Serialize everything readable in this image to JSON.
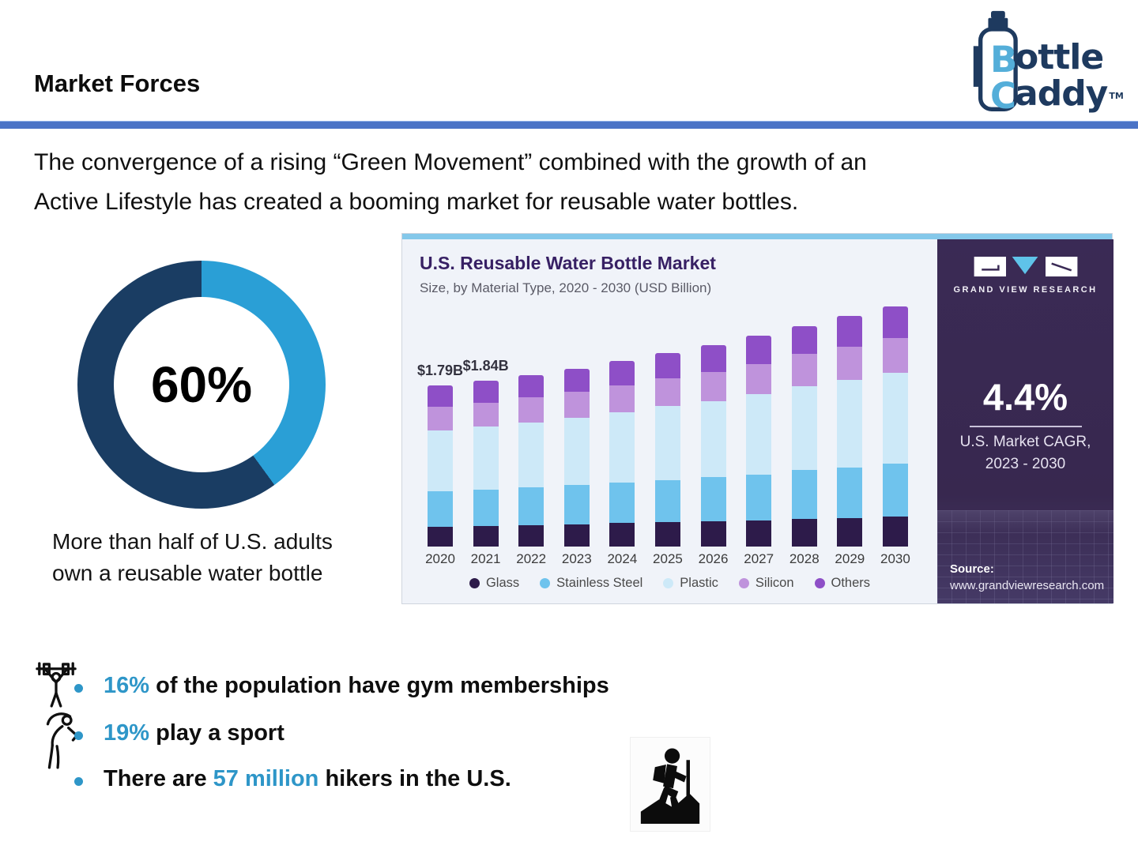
{
  "header": {
    "title": "Market Forces"
  },
  "logo": {
    "letter_b": "B",
    "letter_c": "C",
    "word1_rest": "ottle",
    "word2_rest": "addy",
    "tm": "TM"
  },
  "intro": {
    "line1": "The convergence of a rising “Green Movement” combined with the growth of an",
    "line2": "Active Lifestyle has created a booming market for reusable water bottles."
  },
  "donut": {
    "value_label": "60%",
    "percent": 60,
    "caption_line1": "More than half of U.S. adults",
    "caption_line2": "own a reusable water bottle"
  },
  "figure": {
    "brand": "GRAND VIEW RESEARCH",
    "cagr_value": "4.4%",
    "cagr_label_line1": "U.S. Market CAGR,",
    "cagr_label_line2": "2023 - 2030",
    "source_label": "Source:",
    "source_url": "www.grandviewresearch.com"
  },
  "chart_data": {
    "type": "bar",
    "stacked": true,
    "title": "U.S. Reusable Water Bottle Market",
    "subtitle": "Size, by Material Type, 2020 - 2030 (USD Billion)",
    "unit": "USD Billion",
    "categories": [
      "2020",
      "2021",
      "2022",
      "2023",
      "2024",
      "2025",
      "2026",
      "2027",
      "2028",
      "2029",
      "2030"
    ],
    "series": [
      {
        "name": "Glass",
        "color": "#2d1b4a",
        "values": [
          0.22,
          0.23,
          0.24,
          0.25,
          0.26,
          0.27,
          0.28,
          0.29,
          0.31,
          0.32,
          0.33
        ]
      },
      {
        "name": "Stainless Steel",
        "color": "#6fc3ed",
        "values": [
          0.39,
          0.4,
          0.42,
          0.43,
          0.45,
          0.47,
          0.49,
          0.51,
          0.54,
          0.56,
          0.59
        ]
      },
      {
        "name": "Plastic",
        "color": "#cde9f8",
        "values": [
          0.68,
          0.7,
          0.72,
          0.75,
          0.78,
          0.82,
          0.85,
          0.89,
          0.93,
          0.97,
          1.01
        ]
      },
      {
        "name": "Silicon",
        "color": "#bf93dc",
        "values": [
          0.26,
          0.27,
          0.28,
          0.29,
          0.3,
          0.31,
          0.32,
          0.34,
          0.36,
          0.37,
          0.39
        ]
      },
      {
        "name": "Others",
        "color": "#8e4fc7",
        "values": [
          0.24,
          0.24,
          0.24,
          0.25,
          0.27,
          0.28,
          0.3,
          0.31,
          0.31,
          0.34,
          0.35
        ]
      }
    ],
    "totals": [
      1.79,
      1.84,
      1.9,
      1.97,
      2.06,
      2.15,
      2.24,
      2.34,
      2.45,
      2.56,
      2.67
    ],
    "value_labels": {
      "2020": "$1.79B",
      "2021": "$1.84B"
    },
    "legend_position": "bottom",
    "grid": false,
    "ylim": [
      0,
      2.8
    ]
  },
  "bullets": [
    {
      "prefix": "",
      "highlight": "16%",
      "suffix": " of the population have gym memberships"
    },
    {
      "prefix": "",
      "highlight": "19%",
      "suffix": " play a sport"
    },
    {
      "prefix": "There are ",
      "highlight": "57 million",
      "suffix": " hikers in the U.S."
    }
  ],
  "colors": {
    "accent_blue": "#2e96c8",
    "divider_blue": "#4a73c6",
    "donut_dark": "#1a3d63",
    "donut_light": "#2a9fd6",
    "figure_strip": "#84c8ea",
    "panel_purple": "#3a2a55"
  }
}
